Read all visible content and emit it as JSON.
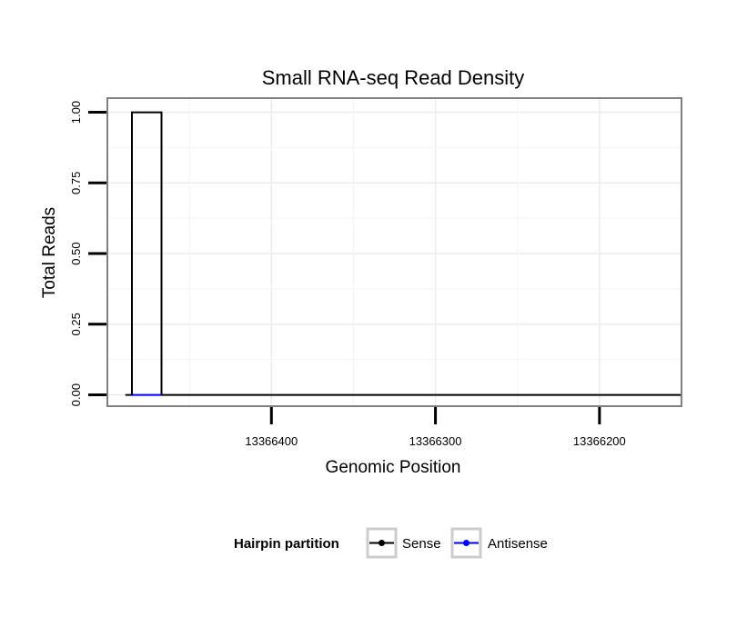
{
  "chart_data": {
    "type": "line",
    "title": "Small RNA-seq Read Density",
    "xlabel": "Genomic Position",
    "ylabel": "Total Reads",
    "x_reversed": true,
    "xlim": [
      13366500,
      13366150
    ],
    "ylim": [
      -0.04,
      1.05
    ],
    "xticks": [
      13366400,
      13366300,
      13366200
    ],
    "xtick_labels": [
      "13366400",
      "13366300",
      "13366200"
    ],
    "yticks": [
      0,
      0.25,
      0.5,
      0.75,
      1
    ],
    "ytick_labels": [
      "0.00",
      "0.25",
      "0.50",
      "0.75",
      "1.00"
    ],
    "grid": true,
    "legend": {
      "title": "Hairpin partition",
      "position": "bottom",
      "entries": [
        "Sense",
        "Antisense"
      ]
    },
    "series": [
      {
        "name": "Sense",
        "color": "#000000",
        "x": [
          13366489,
          13366485,
          13366485,
          13366467,
          13366467,
          13366150
        ],
        "y": [
          0,
          0,
          1,
          1,
          0,
          0
        ]
      },
      {
        "name": "Antisense",
        "color": "#0000ff",
        "x": [
          13366485,
          13366467
        ],
        "y": [
          0,
          0
        ]
      }
    ]
  }
}
